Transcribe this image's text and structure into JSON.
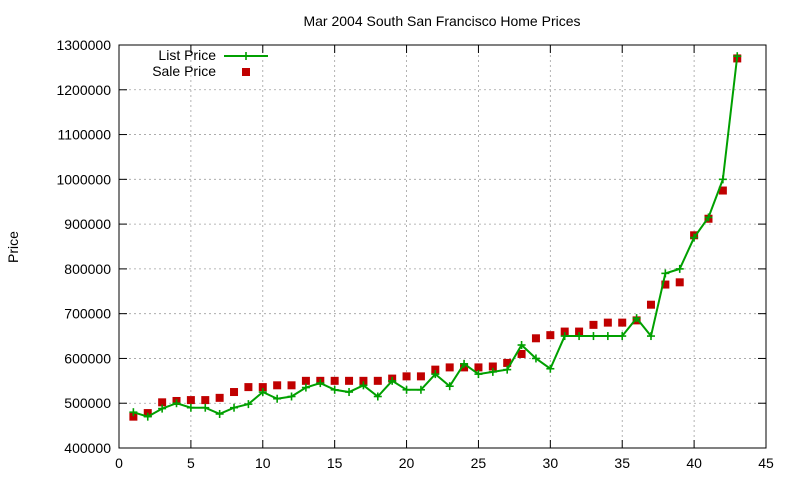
{
  "chart_data": {
    "type": "line",
    "title": "Mar 2004 South San Francisco Home Prices",
    "xlabel": "",
    "ylabel": "Price",
    "xlim": [
      0,
      45
    ],
    "ylim": [
      400000,
      1300000
    ],
    "x_ticks": [
      0,
      5,
      10,
      15,
      20,
      25,
      30,
      35,
      40,
      45
    ],
    "y_ticks": [
      400000,
      500000,
      600000,
      700000,
      800000,
      900000,
      1000000,
      1100000,
      1200000,
      1300000
    ],
    "grid": true,
    "legend_position": "top-left",
    "series": [
      {
        "name": "List Price",
        "style": "line-with-plus-markers",
        "color": "#00a000",
        "x": [
          1,
          2,
          3,
          4,
          5,
          6,
          7,
          8,
          9,
          10,
          11,
          12,
          13,
          14,
          15,
          16,
          17,
          18,
          19,
          20,
          21,
          22,
          23,
          24,
          25,
          26,
          27,
          28,
          29,
          30,
          31,
          32,
          33,
          34,
          35,
          36,
          37,
          38,
          39,
          40,
          41,
          42,
          43
        ],
        "values": [
          480000,
          470000,
          488000,
          500000,
          490000,
          490000,
          476000,
          490000,
          498000,
          525000,
          510000,
          515000,
          535000,
          545000,
          530000,
          525000,
          540000,
          515000,
          550000,
          530000,
          530000,
          565000,
          538000,
          588000,
          565000,
          570000,
          575000,
          630000,
          600000,
          577000,
          650000,
          650000,
          650000,
          650000,
          650000,
          690000,
          650000,
          790000,
          800000,
          870000,
          915000,
          1000000,
          1275000
        ]
      },
      {
        "name": "Sale Price",
        "style": "square-markers",
        "color": "#c00000",
        "x": [
          1,
          2,
          3,
          4,
          5,
          6,
          7,
          8,
          9,
          10,
          11,
          12,
          13,
          14,
          15,
          16,
          17,
          18,
          19,
          20,
          21,
          22,
          23,
          24,
          25,
          26,
          27,
          28,
          29,
          30,
          31,
          32,
          33,
          34,
          35,
          36,
          37,
          38,
          39,
          40,
          41,
          42,
          43
        ],
        "values": [
          470000,
          478000,
          502000,
          505000,
          507000,
          507000,
          512000,
          525000,
          536000,
          536000,
          540000,
          540000,
          550000,
          550000,
          550000,
          550000,
          550000,
          550000,
          555000,
          560000,
          560000,
          575000,
          580000,
          580000,
          580000,
          582000,
          590000,
          610000,
          645000,
          652000,
          660000,
          660000,
          675000,
          680000,
          680000,
          685000,
          720000,
          765000,
          770000,
          875000,
          912000,
          975000,
          1270000
        ]
      }
    ]
  }
}
